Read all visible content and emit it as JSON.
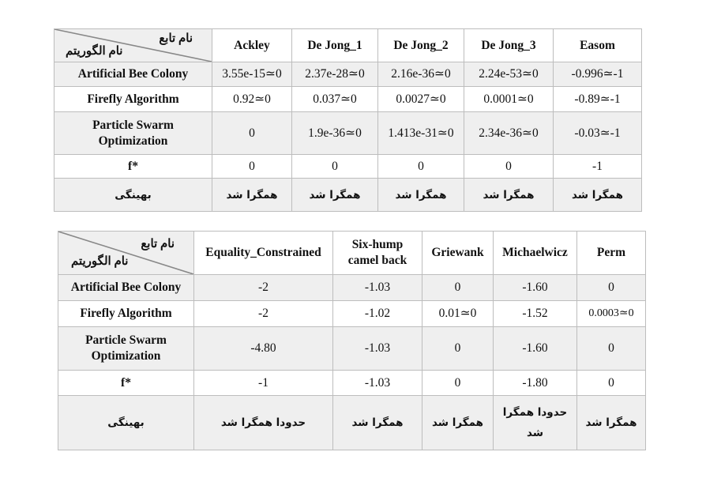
{
  "table1": {
    "header": {
      "function_name_label": "نام تابع",
      "algorithm_name_label": "نام الگوریتم",
      "columns": [
        "Ackley",
        "De Jong_1",
        "De Jong_2",
        "De Jong_3",
        "Easom"
      ]
    },
    "rows": [
      {
        "label": "Artificial Bee Colony",
        "cells": [
          "3.55e-15≃0",
          "2.37e-28≃0",
          "2.16e-36≃0",
          "2.24e-53≃0",
          "-0.996≃-1"
        ]
      },
      {
        "label": "Firefly Algorithm",
        "cells": [
          "0.92≃0",
          "0.037≃0",
          "0.0027≃0",
          "0.0001≃0",
          "-0.89≃-1"
        ]
      },
      {
        "label": "Particle Swarm Optimization",
        "label_line1": "Particle Swarm",
        "label_line2": "Optimization",
        "cells": [
          "0",
          "1.9e-36≃0",
          "1.413e-31≃0",
          "2.34e-36≃0",
          "-0.03≃-1"
        ]
      },
      {
        "label": "f*",
        "cells": [
          "0",
          "0",
          "0",
          "0",
          "-1"
        ]
      },
      {
        "label": "بهینگی",
        "cells": [
          "همگرا شد",
          "همگرا شد",
          "همگرا شد",
          "همگرا شد",
          "همگرا شد"
        ]
      }
    ]
  },
  "table2": {
    "header": {
      "function_name_label": "نام تابع",
      "algorithm_name_label": "نام الگوریتم",
      "columns": [
        "Equality_Constrained",
        "Six-hump camel back",
        "Griewank",
        "Michaelwicz",
        "Perm"
      ],
      "col2_line1": "Six-hump",
      "col2_line2": "camel back"
    },
    "rows": [
      {
        "label": "Artificial Bee Colony",
        "cells": [
          "-2",
          "-1.03",
          "0",
          "-1.60",
          "0"
        ]
      },
      {
        "label": "Firefly Algorithm",
        "cells": [
          "-2",
          "-1.02",
          "0.01≃0",
          "-1.52",
          "0.0003≃0"
        ]
      },
      {
        "label": "Particle Swarm Optimization",
        "label_line1": "Particle Swarm",
        "label_line2": "Optimization",
        "cells": [
          "-4.80",
          "-1.03",
          "0",
          "-1.60",
          "0"
        ]
      },
      {
        "label": "f*",
        "cells": [
          "-1",
          "-1.03",
          "0",
          "-1.80",
          "0"
        ]
      },
      {
        "label": "بهینگی",
        "cells": [
          "حدودا همگرا شد",
          "همگرا شد",
          "همگرا شد",
          "حدودا همگرا شد",
          "همگرا شد"
        ],
        "col4_line1": "حدودا همگرا",
        "col4_line2": "شد"
      }
    ]
  }
}
